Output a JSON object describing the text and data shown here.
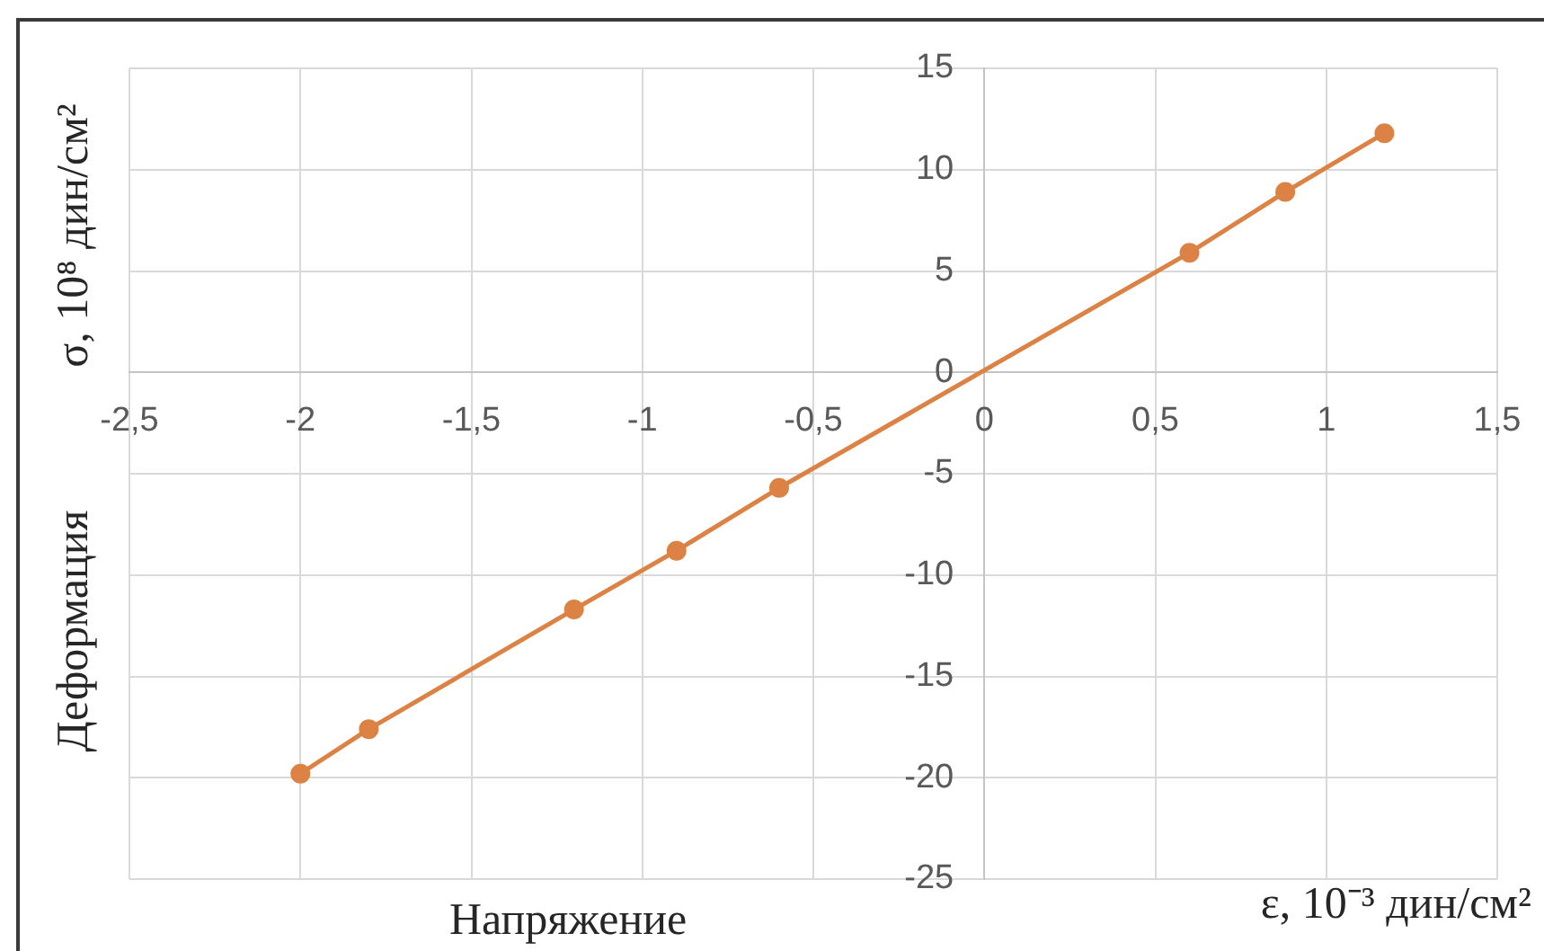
{
  "chart_data": {
    "type": "line",
    "xlabel": "ε, 10⁻³ дин/см²",
    "ylabel": "σ, 10⁸ дин/см²",
    "annotations": [
      "Деформация",
      "Напряжение"
    ],
    "x": [
      -2,
      -1.8,
      -1.2,
      -0.9,
      -0.6,
      0.6,
      0.88,
      1.17
    ],
    "series": [
      {
        "color": "#dc8244",
        "values": [
          -19.8,
          -17.6,
          -11.7,
          -8.8,
          -5.7,
          5.9,
          8.9,
          11.8
        ]
      }
    ],
    "xlim": [
      -2.5,
      1.5
    ],
    "xticks": [
      {
        "value": -2.5,
        "label": "-2,5"
      },
      -2,
      {
        "value": -1.5,
        "label": "-1,5"
      },
      -1,
      {
        "value": -0.5,
        "label": "-0,5"
      },
      0,
      {
        "value": 0.5,
        "label": "0,5"
      },
      1,
      {
        "value": 1.5,
        "label": "1,5"
      }
    ],
    "ylim": [
      -25,
      15
    ],
    "yticks": [
      -25,
      -20,
      -15,
      -10,
      -5,
      0,
      5,
      10,
      15
    ],
    "grid": true,
    "marker": "circle",
    "line_style": "solid"
  }
}
